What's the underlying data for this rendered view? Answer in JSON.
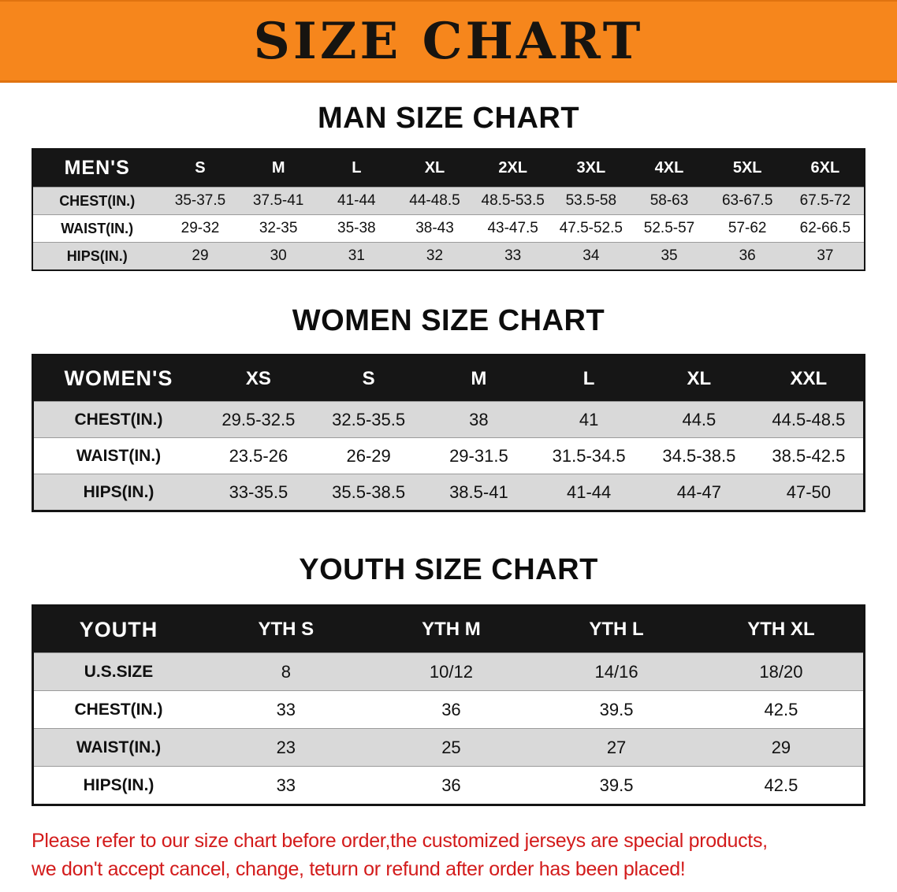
{
  "banner": {
    "title": "SIZE CHART",
    "bg_color": "#f6861c",
    "text_color": "#171410"
  },
  "colors": {
    "header_row_bg": "#161616",
    "stripe_row_bg": "#d9d9d9",
    "disclaimer_red": "#d31b1b"
  },
  "sections": [
    {
      "heading": "MAN SIZE CHART",
      "table": {
        "header": [
          "MEN'S",
          "S",
          "M",
          "L",
          "XL",
          "2XL",
          "3XL",
          "4XL",
          "5XL",
          "6XL"
        ],
        "rows": [
          {
            "label": "CHEST(IN.)",
            "values": [
              "35-37.5",
              "37.5-41",
              "41-44",
              "44-48.5",
              "48.5-53.5",
              "53.5-58",
              "58-63",
              "63-67.5",
              "67.5-72"
            ]
          },
          {
            "label": "WAIST(IN.)",
            "values": [
              "29-32",
              "32-35",
              "35-38",
              "38-43",
              "43-47.5",
              "47.5-52.5",
              "52.5-57",
              "57-62",
              "62-66.5"
            ]
          },
          {
            "label": "HIPS(IN.)",
            "values": [
              "29",
              "30",
              "31",
              "32",
              "33",
              "34",
              "35",
              "36",
              "37"
            ]
          }
        ]
      }
    },
    {
      "heading": "WOMEN SIZE CHART",
      "table": {
        "header": [
          "WOMEN'S",
          "XS",
          "S",
          "M",
          "L",
          "XL",
          "XXL"
        ],
        "rows": [
          {
            "label": "CHEST(IN.)",
            "values": [
              "29.5-32.5",
              "32.5-35.5",
              "38",
              "41",
              "44.5",
              "44.5-48.5"
            ]
          },
          {
            "label": "WAIST(IN.)",
            "values": [
              "23.5-26",
              "26-29",
              "29-31.5",
              "31.5-34.5",
              "34.5-38.5",
              "38.5-42.5"
            ]
          },
          {
            "label": "HIPS(IN.)",
            "values": [
              "33-35.5",
              "35.5-38.5",
              "38.5-41",
              "41-44",
              "44-47",
              "47-50"
            ]
          }
        ]
      }
    },
    {
      "heading": "YOUTH SIZE CHART",
      "table": {
        "header": [
          "YOUTH",
          "YTH S",
          "YTH M",
          "YTH L",
          "YTH XL"
        ],
        "rows": [
          {
            "label": "U.S.SIZE",
            "values": [
              "8",
              "10/12",
              "14/16",
              "18/20"
            ]
          },
          {
            "label": "CHEST(IN.)",
            "values": [
              "33",
              "36",
              "39.5",
              "42.5"
            ]
          },
          {
            "label": "WAIST(IN.)",
            "values": [
              "23",
              "25",
              "27",
              "29"
            ]
          },
          {
            "label": "HIPS(IN.)",
            "values": [
              "33",
              "36",
              "39.5",
              "42.5"
            ]
          }
        ]
      }
    }
  ],
  "footnote": {
    "line1": "Please refer to our size chart before order,the customized jerseys are special products,",
    "line2": "we don't accept cancel, change, teturn or refund after order has been placed!"
  }
}
